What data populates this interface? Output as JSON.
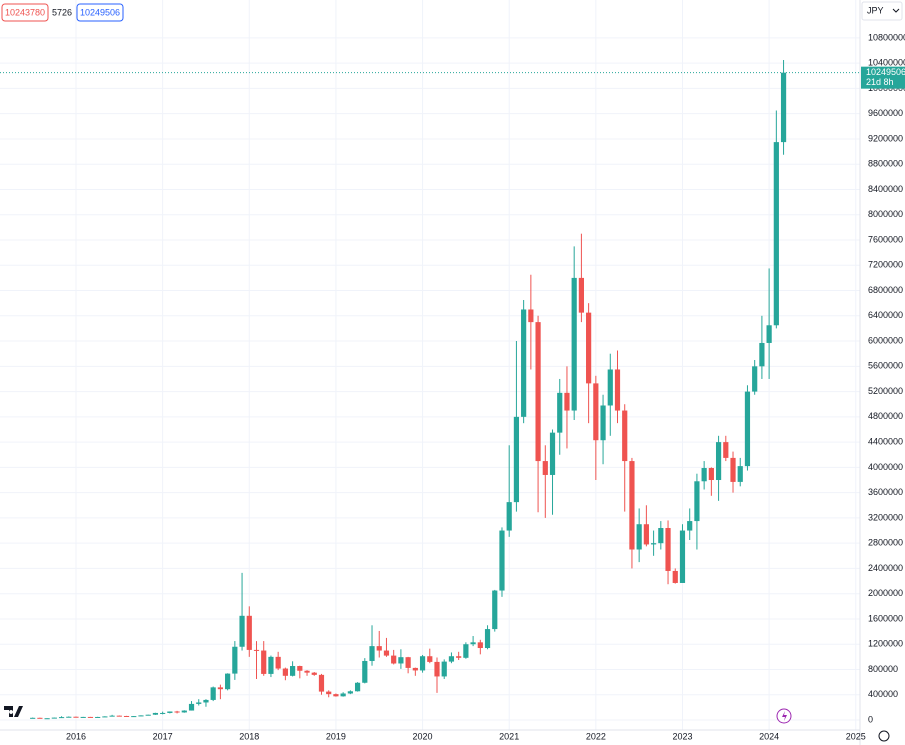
{
  "chart_data": {
    "type": "candlestick",
    "currency": "JPY",
    "bid": "10243780",
    "spread": "5726",
    "countdown": "21d 8h",
    "up_color": "#26a69a",
    "down_color": "#ef5350",
    "grid": true,
    "ylim": [
      -158000,
      11400000
    ],
    "yticks": [
      0,
      400000,
      800000,
      1200000,
      1600000,
      2000000,
      2400000,
      2800000,
      3200000,
      3600000,
      4000000,
      4400000,
      4800000,
      5200000,
      5600000,
      6000000,
      6400000,
      6800000,
      7200000,
      7600000,
      8000000,
      8400000,
      8800000,
      9200000,
      9600000,
      10000000,
      10400000,
      10800000
    ],
    "xticks": [
      {
        "value": "2016-01",
        "label": "2016"
      },
      {
        "value": "2017-01",
        "label": "2017"
      },
      {
        "value": "2018-01",
        "label": "2018"
      },
      {
        "value": "2019-01",
        "label": "2019"
      },
      {
        "value": "2020-01",
        "label": "2020"
      },
      {
        "value": "2021-01",
        "label": "2021"
      },
      {
        "value": "2022-01",
        "label": "2022"
      },
      {
        "value": "2023-01",
        "label": "2023"
      },
      {
        "value": "2024-01",
        "label": "2024"
      },
      {
        "value": "2025-01",
        "label": "2025"
      }
    ],
    "x": [
      "2015-07",
      "2015-08",
      "2015-09",
      "2015-10",
      "2015-11",
      "2015-12",
      "2016-01",
      "2016-02",
      "2016-03",
      "2016-04",
      "2016-05",
      "2016-06",
      "2016-07",
      "2016-08",
      "2016-09",
      "2016-10",
      "2016-11",
      "2016-12",
      "2017-01",
      "2017-02",
      "2017-03",
      "2017-04",
      "2017-05",
      "2017-06",
      "2017-07",
      "2017-08",
      "2017-09",
      "2017-10",
      "2017-11",
      "2017-12",
      "2018-01",
      "2018-02",
      "2018-03",
      "2018-04",
      "2018-05",
      "2018-06",
      "2018-07",
      "2018-08",
      "2018-09",
      "2018-10",
      "2018-11",
      "2018-12",
      "2019-01",
      "2019-02",
      "2019-03",
      "2019-04",
      "2019-05",
      "2019-06",
      "2019-07",
      "2019-08",
      "2019-09",
      "2019-10",
      "2019-11",
      "2019-12",
      "2020-01",
      "2020-02",
      "2020-03",
      "2020-04",
      "2020-05",
      "2020-06",
      "2020-07",
      "2020-08",
      "2020-09",
      "2020-10",
      "2020-11",
      "2020-12",
      "2021-01",
      "2021-02",
      "2021-03",
      "2021-04",
      "2021-05",
      "2021-06",
      "2021-07",
      "2021-08",
      "2021-09",
      "2021-10",
      "2021-11",
      "2021-12",
      "2022-01",
      "2022-02",
      "2022-03",
      "2022-04",
      "2022-05",
      "2022-06",
      "2022-07",
      "2022-08",
      "2022-09",
      "2022-10",
      "2022-11",
      "2022-12",
      "2023-01",
      "2023-02",
      "2023-03",
      "2023-04",
      "2023-05",
      "2023-06",
      "2023-07",
      "2023-08",
      "2023-09",
      "2023-10",
      "2023-11",
      "2023-12",
      "2024-01",
      "2024-02",
      "2024-03"
    ],
    "open": [
      31000,
      35000,
      28000,
      28500,
      38000,
      46000,
      52000,
      44000,
      49000,
      47000,
      48500,
      57000,
      69000,
      64000,
      58000,
      62000,
      73000,
      84000,
      112000,
      112000,
      135000,
      120000,
      150000,
      255000,
      278000,
      318000,
      517000,
      488000,
      735000,
      1160000,
      1650000,
      1110000,
      1100000,
      730000,
      1000000,
      815000,
      700000,
      855000,
      780000,
      750000,
      715000,
      450000,
      410000,
      375000,
      420000,
      455000,
      590000,
      935000,
      1170000,
      1100000,
      1020000,
      895000,
      995000,
      825000,
      785000,
      1010000,
      920000,
      690000,
      925000,
      1010000,
      985000,
      1200000,
      1230000,
      1140000,
      1440000,
      2050000,
      3000000,
      3450000,
      4800000,
      6500000,
      6300000,
      4100000,
      3880000,
      4550000,
      5180000,
      4900000,
      7000000,
      6450000,
      5330000,
      4430000,
      4980000,
      5550000,
      4900000,
      4100000,
      2700000,
      3100000,
      2780000,
      2800000,
      3040000,
      2360000,
      2170000,
      3000000,
      3150000,
      3780000,
      3990000,
      3800000,
      4400000,
      4150000,
      3770000,
      4020000,
      5200000,
      5600000,
      5970000,
      6250000,
      9150000
    ],
    "high": [
      39000,
      37000,
      29500,
      40000,
      60000,
      57000,
      56000,
      50000,
      50000,
      51000,
      60000,
      82000,
      72000,
      66000,
      63000,
      75000,
      85000,
      115000,
      133000,
      136000,
      145000,
      155000,
      300000,
      330000,
      330000,
      530000,
      560000,
      740000,
      1250000,
      2330000,
      1800000,
      1250000,
      1250000,
      1020000,
      1080000,
      830000,
      930000,
      860000,
      790000,
      760000,
      730000,
      470000,
      420000,
      440000,
      470000,
      600000,
      980000,
      1500000,
      1410000,
      1300000,
      1110000,
      1120000,
      1000000,
      830000,
      1030000,
      1130000,
      990000,
      960000,
      1070000,
      1080000,
      1230000,
      1330000,
      1270000,
      1500000,
      2060000,
      3050000,
      4350000,
      6000000,
      6650000,
      7050000,
      6400000,
      4350000,
      4600000,
      5400000,
      5600000,
      7500000,
      7700000,
      6600000,
      5450000,
      5150000,
      5800000,
      5850000,
      5000000,
      4150000,
      3350000,
      3400000,
      3000000,
      3150000,
      3160000,
      2400000,
      3100000,
      3350000,
      3900000,
      4100000,
      4000000,
      4500000,
      4500000,
      4250000,
      4150000,
      5300000,
      5700000,
      6400000,
      7150000,
      9650000,
      10450000
    ],
    "low": [
      30000,
      24000,
      26500,
      28000,
      36000,
      42000,
      42000,
      40000,
      45000,
      46000,
      48000,
      56000,
      60000,
      50000,
      57000,
      61000,
      71000,
      81000,
      90000,
      105000,
      105000,
      115000,
      150000,
      230000,
      210000,
      300000,
      330000,
      470000,
      635000,
      1100000,
      1000000,
      650000,
      700000,
      680000,
      790000,
      630000,
      690000,
      660000,
      700000,
      700000,
      400000,
      360000,
      370000,
      370000,
      410000,
      450000,
      580000,
      860000,
      990000,
      1000000,
      880000,
      810000,
      740000,
      700000,
      750000,
      900000,
      430000,
      650000,
      900000,
      950000,
      970000,
      1170000,
      1040000,
      1120000,
      1400000,
      1950000,
      2900000,
      3300000,
      4700000,
      5550000,
      3290000,
      3200000,
      3250000,
      4200000,
      4300000,
      4750000,
      6300000,
      4700000,
      3800000,
      4050000,
      4500000,
      4700000,
      3300000,
      2400000,
      2500000,
      2750000,
      2600000,
      2700000,
      2150000,
      2160000,
      2170000,
      2850000,
      2700000,
      3650000,
      3550000,
      3470000,
      4100000,
      3600000,
      3700000,
      3950000,
      5150000,
      5400000,
      5400000,
      6200000,
      8950000
    ],
    "close": [
      35000,
      28000,
      28500,
      38000,
      46000,
      52000,
      44000,
      49000,
      47000,
      48500,
      57000,
      69000,
      64000,
      58000,
      62000,
      73000,
      84000,
      112000,
      112000,
      135000,
      120000,
      150000,
      255000,
      278000,
      318000,
      517000,
      488000,
      735000,
      1160000,
      1650000,
      1110000,
      1100000,
      730000,
      1000000,
      815000,
      700000,
      855000,
      780000,
      750000,
      715000,
      450000,
      410000,
      375000,
      420000,
      455000,
      590000,
      935000,
      1170000,
      1100000,
      1020000,
      895000,
      995000,
      825000,
      785000,
      1010000,
      920000,
      690000,
      925000,
      1010000,
      985000,
      1200000,
      1230000,
      1140000,
      1440000,
      2050000,
      3000000,
      3450000,
      4800000,
      6500000,
      6300000,
      4100000,
      3880000,
      4550000,
      5180000,
      4900000,
      7000000,
      6450000,
      5330000,
      4430000,
      4980000,
      5550000,
      4900000,
      4100000,
      2700000,
      3100000,
      2780000,
      2800000,
      3040000,
      2360000,
      2170000,
      3000000,
      3150000,
      3780000,
      3990000,
      3800000,
      4400000,
      4150000,
      3770000,
      4020000,
      5200000,
      5600000,
      5970000,
      6250000,
      9150000,
      10249506
    ]
  }
}
